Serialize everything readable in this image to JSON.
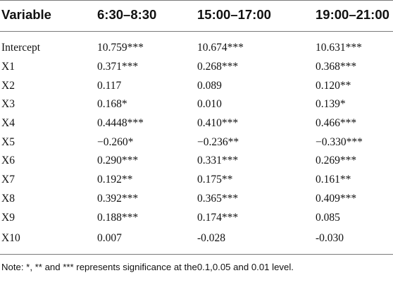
{
  "table": {
    "headers": [
      "Variable",
      "6:30–8:30",
      "15:00–17:00",
      "19:00–21:00"
    ],
    "rows": [
      [
        "Intercept",
        "10.759***",
        "10.674***",
        "10.631***"
      ],
      [
        "X1",
        "0.371***",
        "0.268***",
        "0.368***"
      ],
      [
        "X2",
        "0.117",
        "0.089",
        "0.120**"
      ],
      [
        "X3",
        "0.168*",
        "0.010",
        "0.139*"
      ],
      [
        "X4",
        "0.4448***",
        "0.410***",
        "0.466***"
      ],
      [
        "X5",
        "−0.260*",
        "−0.236**",
        "−0.330***"
      ],
      [
        "X6",
        "0.290***",
        "0.331***",
        "0.269***"
      ],
      [
        "X7",
        "0.192**",
        "0.175**",
        "0.161**"
      ],
      [
        "X8",
        "0.392***",
        "0.365***",
        "0.409***"
      ],
      [
        "X9",
        "0.188***",
        "0.174***",
        "0.085"
      ],
      [
        "X10",
        "0.007",
        "-0.028",
        "-0.030"
      ]
    ]
  },
  "note": "Note: *, ** and *** represents significance at the0.1,0.05 and 0.01 level."
}
